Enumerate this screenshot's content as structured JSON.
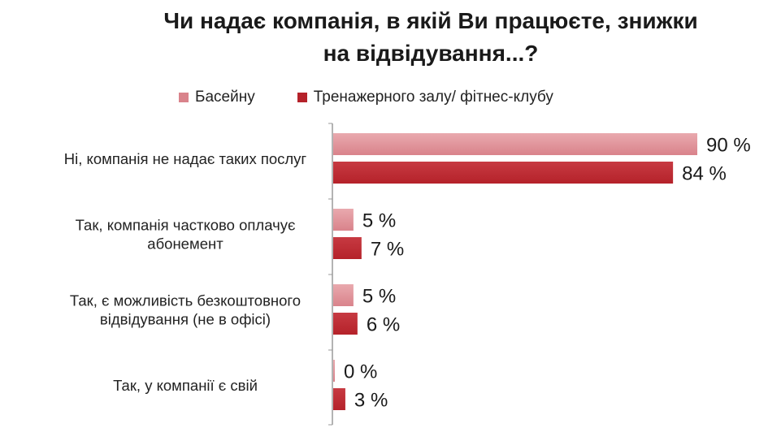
{
  "chart_data": {
    "type": "bar",
    "orientation": "horizontal",
    "title_lines": [
      "Чи надає компанія, в якій Ви працюєте, знижки",
      "на відвідування...?"
    ],
    "categories": [
      [
        "Ні, компанія не надає таких послуг"
      ],
      [
        "Так, компанія частково оплачує",
        "абонемент"
      ],
      [
        "Так, є можливість безкоштовного",
        "відвідування (не в офісі)"
      ],
      [
        "Так, у компанії є свій"
      ]
    ],
    "series": [
      {
        "name": "Басейну",
        "color": "#d9838b",
        "values": [
          90,
          5,
          5,
          0
        ],
        "labels": [
          "90 %",
          "5 %",
          "5 %",
          "0 %"
        ]
      },
      {
        "name": "Тренажерного залу/ фітнес-клубу",
        "color": "#b5222a",
        "values": [
          84,
          7,
          6,
          3
        ],
        "labels": [
          "84 %",
          "7 %",
          "6 %",
          "3 %"
        ]
      }
    ],
    "xlim": [
      0,
      100
    ],
    "legend_position": "top",
    "grid": false
  }
}
